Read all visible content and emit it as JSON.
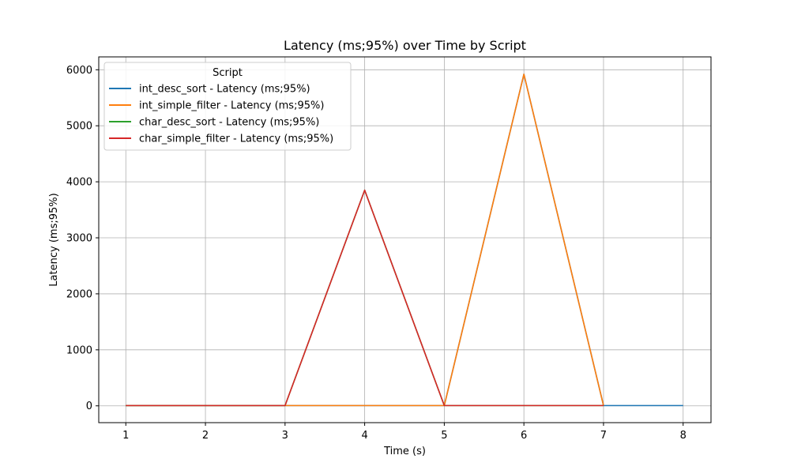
{
  "chart_data": {
    "type": "line",
    "title": "Latency (ms;95%) over Time by Script",
    "xlabel": "Time (s)",
    "ylabel": "Latency (ms;95%)",
    "xlim": [
      0.66,
      8.35
    ],
    "ylim": [
      -300,
      6230
    ],
    "x_ticks": [
      1,
      2,
      3,
      4,
      5,
      6,
      7,
      8
    ],
    "y_ticks": [
      0,
      1000,
      2000,
      3000,
      4000,
      5000,
      6000
    ],
    "grid": true,
    "legend": {
      "title": "Script",
      "placement": "top-left"
    },
    "series": [
      {
        "name": "int_desc_sort - Latency (ms;95%)",
        "color": "#1f77b4",
        "x": [
          1,
          2,
          3,
          4,
          5,
          6,
          7,
          8
        ],
        "y": [
          5,
          5,
          5,
          5,
          5,
          5920,
          5,
          5
        ]
      },
      {
        "name": "int_simple_filter - Latency (ms;95%)",
        "color": "#ff7f0e",
        "x": [
          1,
          2,
          3,
          4,
          5,
          6,
          7
        ],
        "y": [
          5,
          5,
          5,
          5,
          5,
          5920,
          5
        ]
      },
      {
        "name": "char_desc_sort - Latency (ms;95%)",
        "color": "#2ca02c",
        "x": [
          1,
          2,
          3,
          4,
          5,
          6,
          7
        ],
        "y": [
          5,
          5,
          5,
          3850,
          5,
          5,
          5
        ]
      },
      {
        "name": "char_simple_filter - Latency (ms;95%)",
        "color": "#d62728",
        "x": [
          1,
          2,
          3,
          4,
          5,
          6,
          7
        ],
        "y": [
          5,
          5,
          5,
          3850,
          5,
          5,
          5
        ]
      }
    ]
  }
}
